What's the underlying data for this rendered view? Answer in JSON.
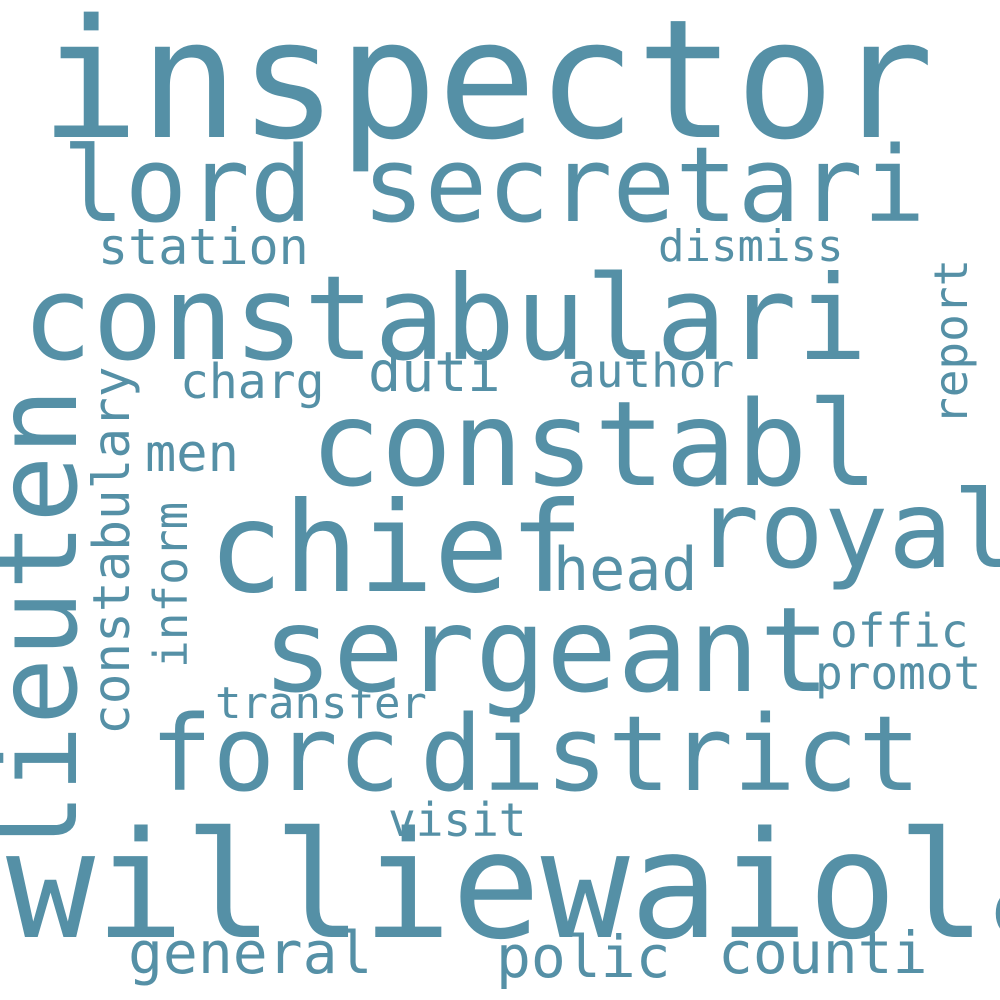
{
  "color": "#5590a6",
  "words": {
    "inspector": "inspector",
    "lord": "lord",
    "secretari": "secretari",
    "station": "station",
    "dismiss": "dismiss",
    "constabulari": "constabulari",
    "lieuten": "lieuten",
    "constabulary": "constabulary",
    "charg": "charg",
    "duti": "duti",
    "author": "author",
    "report": "report",
    "men": "men",
    "constabl": "constabl",
    "inform": "inform",
    "chief": "chief",
    "royal": "royal",
    "head": "head",
    "sergeant": "sergeant",
    "offic": "offic",
    "promot": "promot",
    "transfer": "transfer",
    "forc": "forc",
    "district": "district",
    "visit": "visit",
    "williewaiola": "williewaiola",
    "general": "general",
    "polic": "polic",
    "counti": "counti"
  }
}
